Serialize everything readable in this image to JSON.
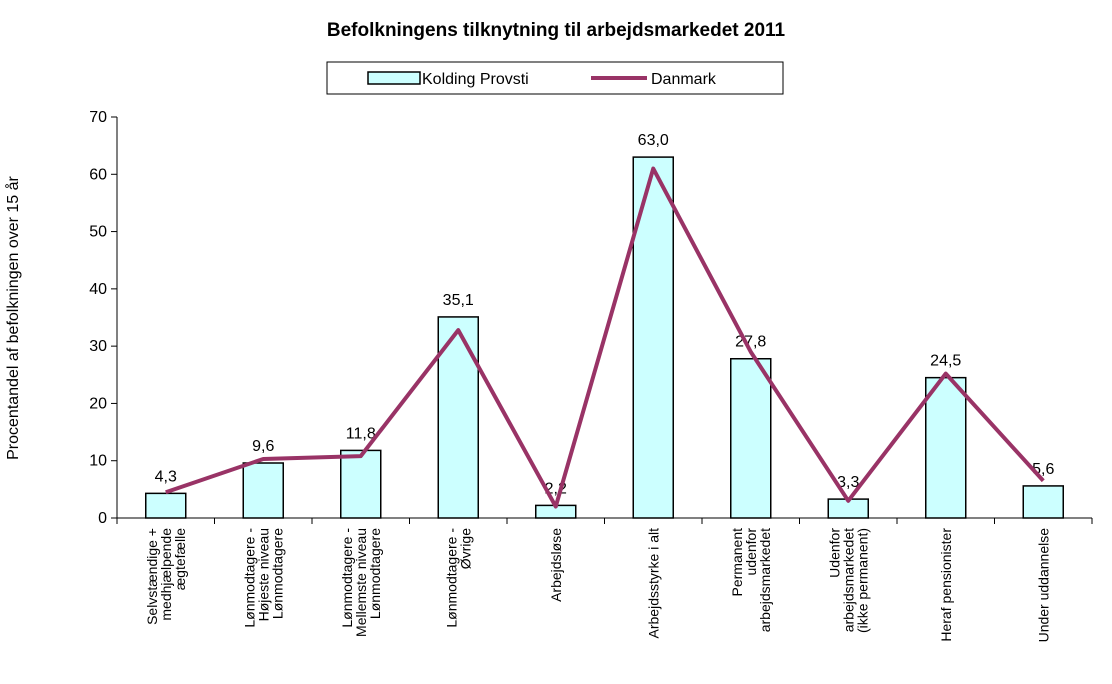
{
  "chart_data": {
    "type": "bar_line",
    "title": "Befolkningens tilknytning til arbejdsmarkedet 2011",
    "y_label": "Procentandel af befolkningen over 15 år",
    "categories": [
      "Selvstændige +\nmedhjælpende\nægtefælle",
      "Lønmodtagere -\nHøjeste niveau\nLønmodtagere",
      "Lønmodtagere -\nMellemste niveau\nLønmodtagere",
      "Lønmodtagere -\nØvrige",
      "Arbejdsløse",
      "Arbejdsstyrke i alt",
      "Permanent\nudenfor\narbejdsmarkedet",
      "Udenfor\narbejdsmarkedet\n(ikke permanent)",
      "Heraf pensionister",
      "Under uddannelse"
    ],
    "series": [
      {
        "name": "Kolding Provsti",
        "type": "bar",
        "color": "#ccffff",
        "values": [
          4.3,
          9.6,
          11.8,
          35.1,
          2.2,
          63.0,
          27.8,
          3.3,
          24.5,
          5.6
        ],
        "value_labels": [
          "4,3",
          "9,6",
          "11,8",
          "35,1",
          "2,2",
          "63,0",
          "27,8",
          "3,3",
          "24,5",
          "5,6"
        ]
      },
      {
        "name": "Danmark",
        "type": "line",
        "color": "#993366",
        "values": [
          4.5,
          10.3,
          10.8,
          32.8,
          2.0,
          61.0,
          29.0,
          3.0,
          25.2,
          6.5
        ]
      }
    ],
    "ylim": [
      0,
      70
    ],
    "yticks": [
      0,
      10,
      20,
      30,
      40,
      50,
      60,
      70
    ]
  }
}
